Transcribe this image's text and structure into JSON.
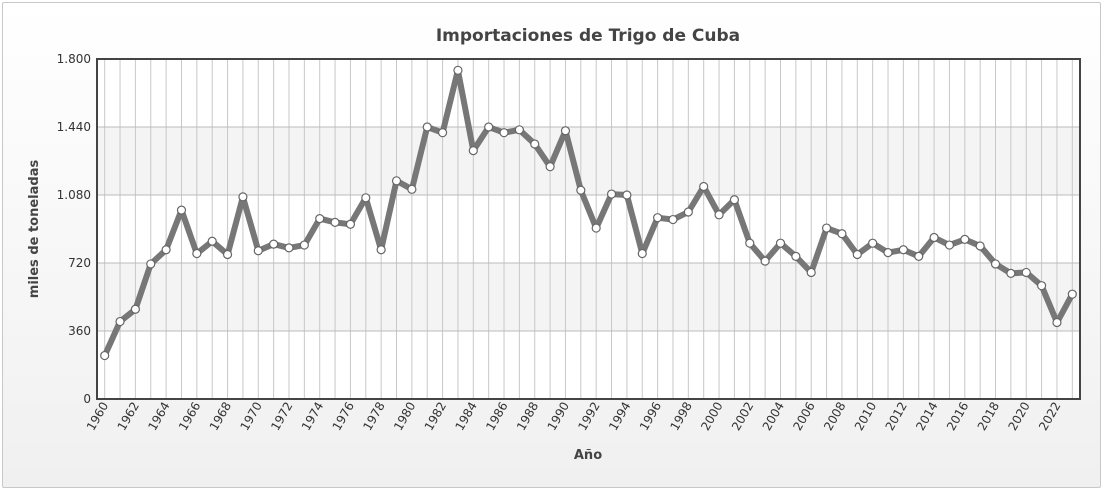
{
  "chart_data": {
    "type": "line",
    "title": "Importaciones de Trigo de Cuba",
    "xlabel": "Año",
    "ylabel": "miles de toneladas",
    "ylim": [
      0,
      1800
    ],
    "yticks": [
      0,
      360,
      720,
      1080,
      1440,
      1800
    ],
    "ytick_labels": [
      "0",
      "360",
      "720",
      "1.080",
      "1.440",
      "1.800"
    ],
    "xtick_labels": [
      "1960",
      "1962",
      "1964",
      "1966",
      "1968",
      "1970",
      "1972",
      "1974",
      "1976",
      "1978",
      "1980",
      "1982",
      "1984",
      "1986",
      "1988",
      "1990",
      "1992",
      "1994",
      "1996",
      "1998",
      "2000",
      "2002",
      "2004",
      "2006",
      "2008",
      "2010",
      "2012",
      "2014",
      "2016",
      "2018",
      "2020",
      "2022"
    ],
    "grid": true,
    "legend": "none",
    "colors": {
      "line": "#777777",
      "marker_fill": "#ffffff",
      "marker_stroke": "#666666",
      "plot_border": "#444444",
      "band": "#f4f4f4",
      "grid": "#c8c8c8"
    },
    "x": [
      1960,
      1961,
      1962,
      1963,
      1964,
      1965,
      1966,
      1967,
      1968,
      1969,
      1970,
      1971,
      1972,
      1973,
      1974,
      1975,
      1976,
      1977,
      1978,
      1979,
      1980,
      1981,
      1982,
      1983,
      1984,
      1985,
      1986,
      1987,
      1988,
      1989,
      1990,
      1991,
      1992,
      1993,
      1994,
      1995,
      1996,
      1997,
      1998,
      1999,
      2000,
      2001,
      2002,
      2003,
      2004,
      2005,
      2006,
      2007,
      2008,
      2009,
      2010,
      2011,
      2012,
      2013,
      2014,
      2015,
      2016,
      2017,
      2018,
      2019,
      2020,
      2021,
      2022,
      2023
    ],
    "values": [
      230,
      410,
      475,
      715,
      790,
      1000,
      770,
      835,
      765,
      1070,
      785,
      820,
      800,
      815,
      955,
      935,
      925,
      1065,
      790,
      1155,
      1110,
      1440,
      1410,
      1740,
      1315,
      1440,
      1410,
      1425,
      1350,
      1230,
      1420,
      1105,
      905,
      1085,
      1080,
      770,
      960,
      950,
      990,
      1125,
      975,
      1055,
      825,
      730,
      825,
      755,
      670,
      905,
      875,
      765,
      825,
      775,
      790,
      755,
      855,
      815,
      845,
      810,
      715,
      665,
      670,
      600,
      405,
      555
    ]
  }
}
